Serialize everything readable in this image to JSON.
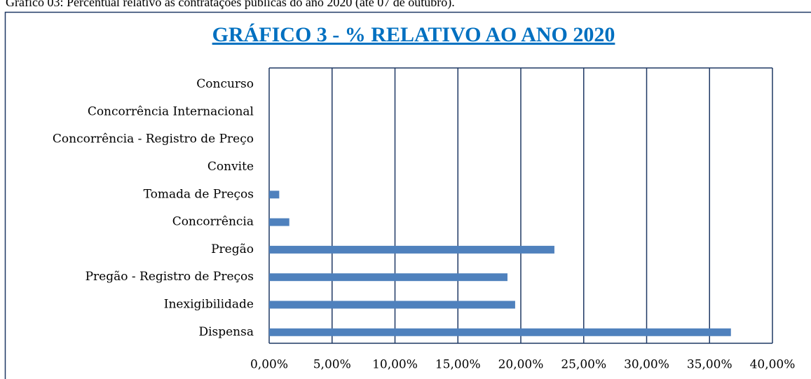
{
  "caption": "Gráfico 03: Percentual relativo às contratações públicas do ano 2020 (até 07 de outubro).",
  "chart_data": {
    "type": "bar",
    "orientation": "horizontal",
    "title": "GRÁFICO 3 - % RELATIVO AO ANO 2020",
    "categories": [
      "Concurso",
      "Concorrência Internacional",
      "Concorrência - Registro de Preço",
      "Convite",
      "Tomada de Preços",
      "Concorrência",
      "Pregão",
      "Pregão - Registro de Preços",
      "Inexigibilidade",
      "Dispensa"
    ],
    "values": [
      0,
      0,
      0,
      0,
      0.8,
      1.6,
      22.67,
      18.94,
      19.55,
      36.7
    ],
    "color": "#4f81bd",
    "xlim": [
      0,
      40
    ],
    "xticks": [
      {
        "value": 0,
        "label": "0,00%"
      },
      {
        "value": 5,
        "label": "5,00%"
      },
      {
        "value": 10,
        "label": "10,00%"
      },
      {
        "value": 15,
        "label": "15,00%"
      },
      {
        "value": 20,
        "label": "20,00%"
      },
      {
        "value": 25,
        "label": "25,00%"
      },
      {
        "value": 30,
        "label": "30,00%"
      },
      {
        "value": 35,
        "label": "35,00%"
      },
      {
        "value": 40,
        "label": "40,00%"
      }
    ],
    "grid": true
  }
}
